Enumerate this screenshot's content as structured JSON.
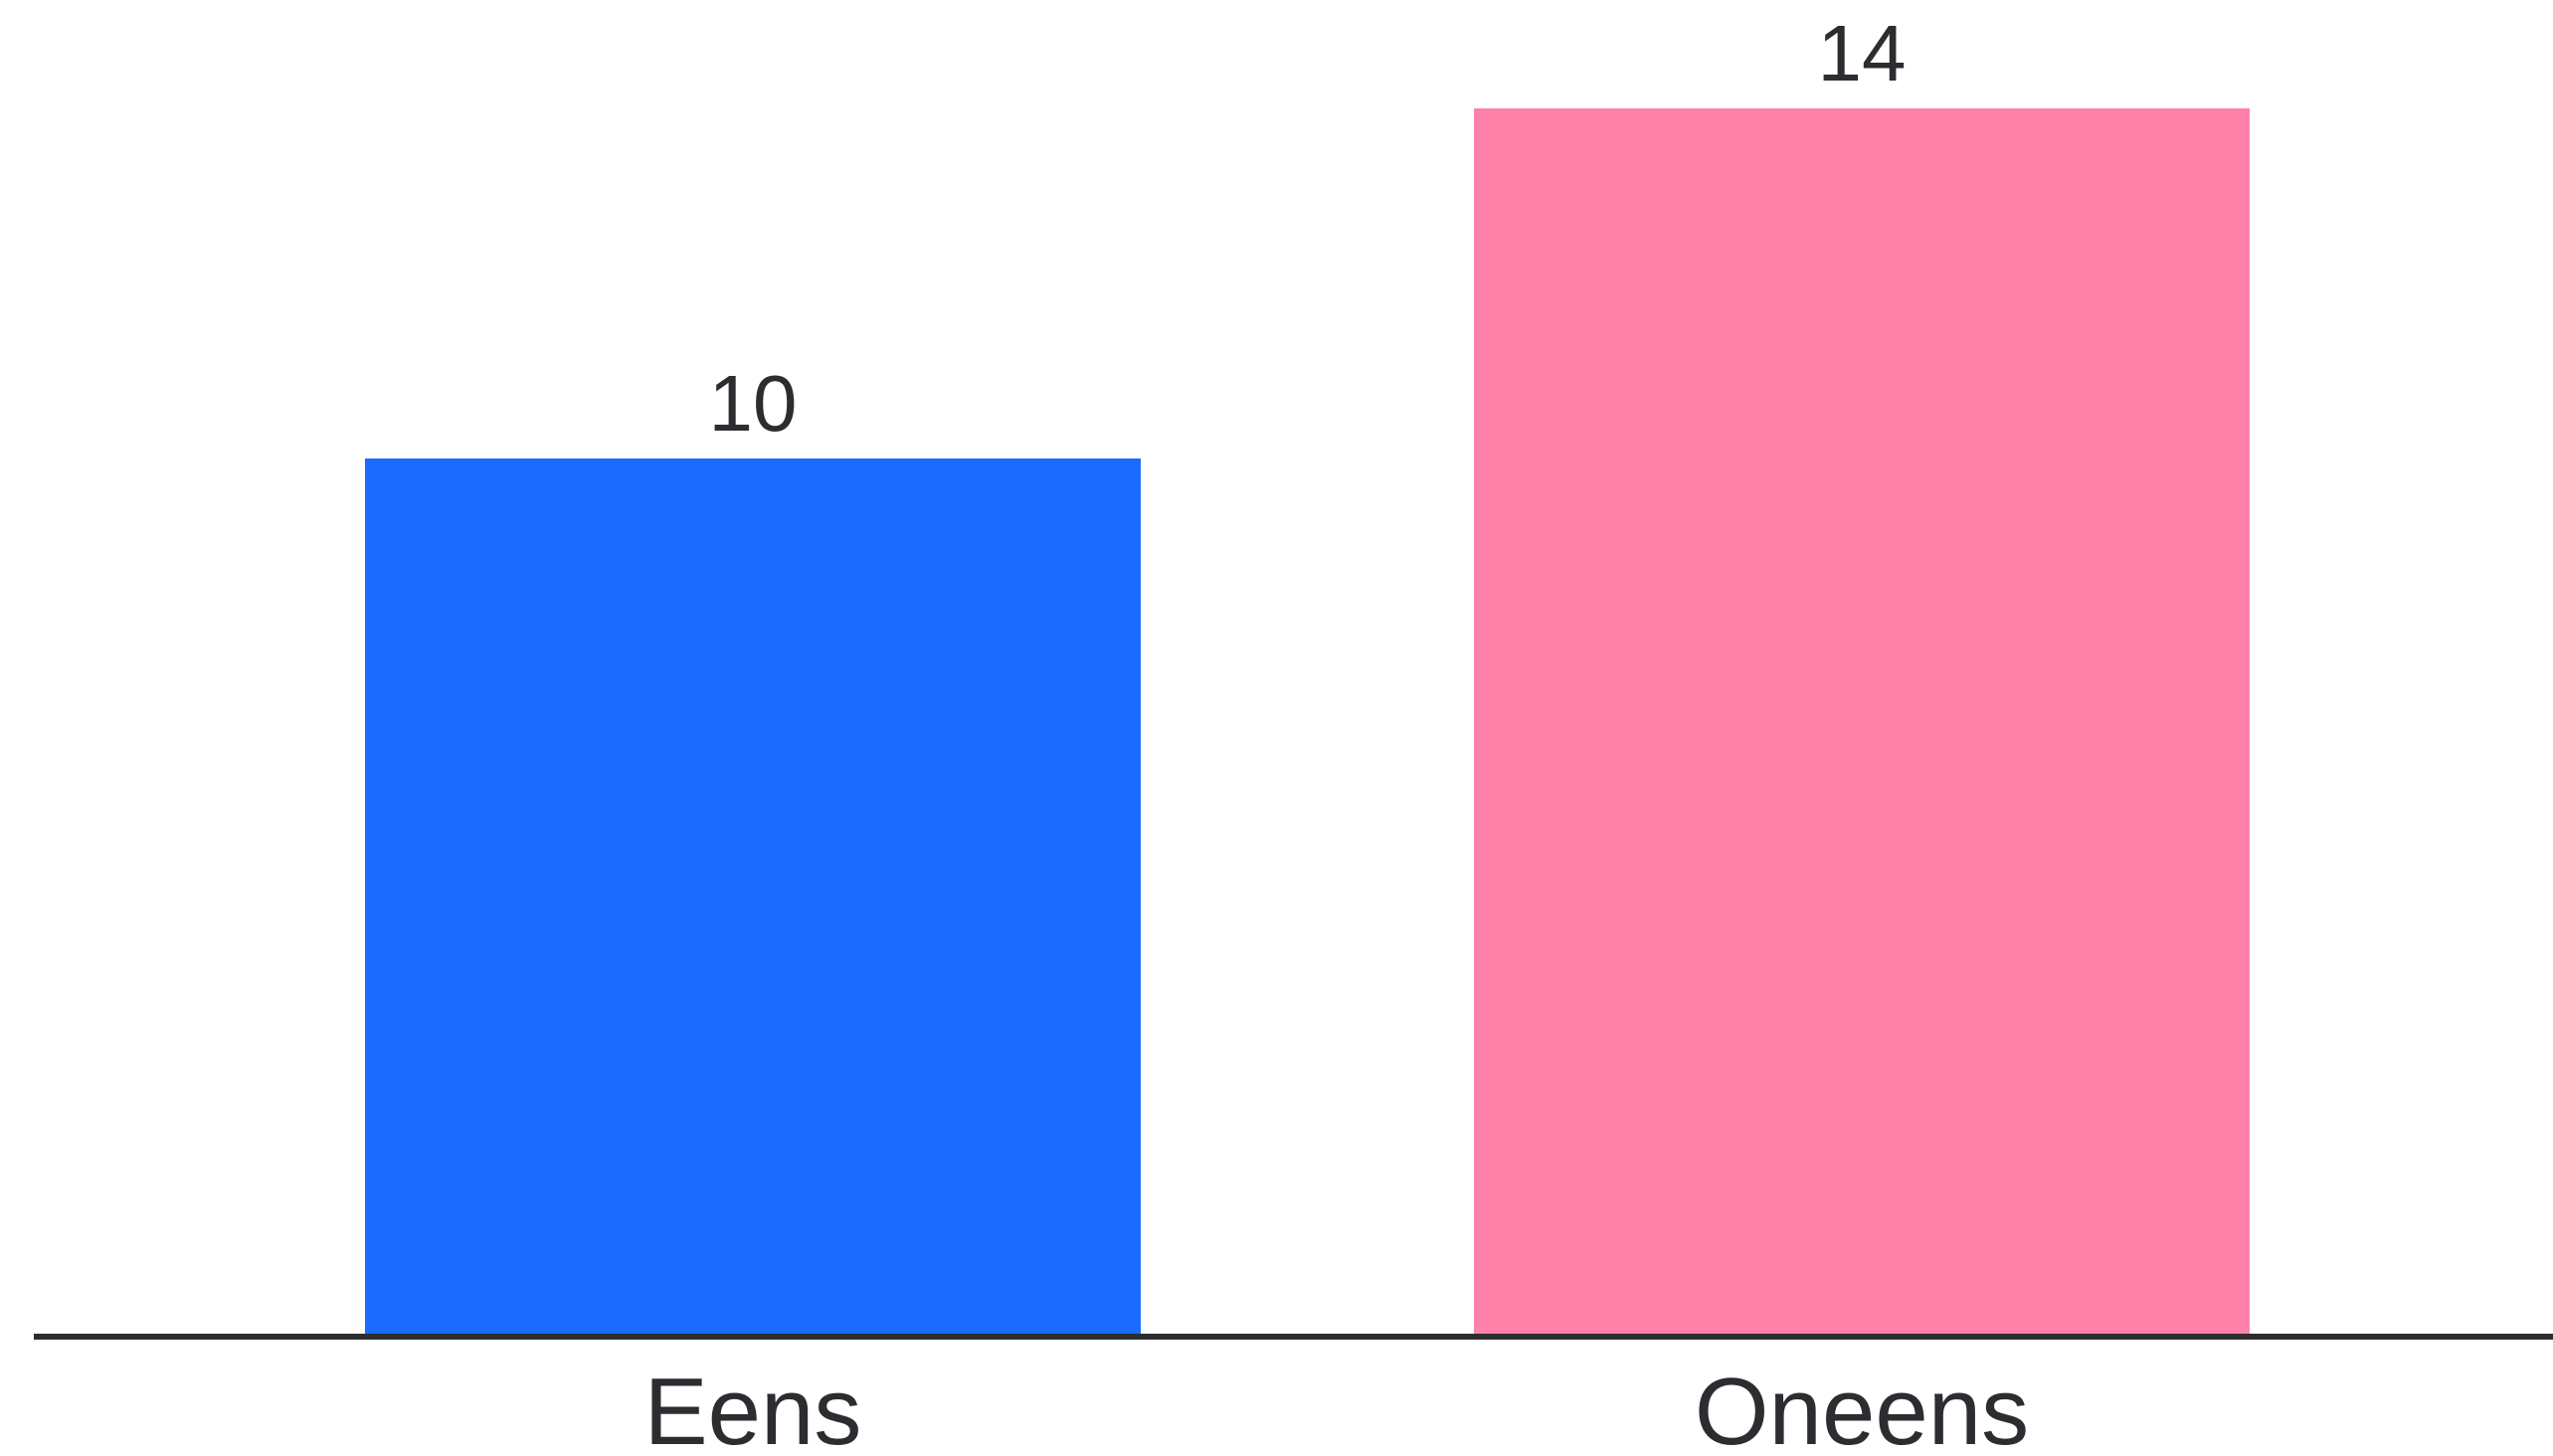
{
  "chart_data": {
    "type": "bar",
    "categories": [
      "Eens",
      "Oneens"
    ],
    "values": [
      10,
      14
    ],
    "colors": [
      "#1c6bff",
      "#ff82ab"
    ],
    "axis_color": "#2b2d31",
    "ylim": [
      0,
      14
    ],
    "grid": false,
    "legend": "none",
    "title": "",
    "xlabel": "",
    "ylabel": ""
  }
}
